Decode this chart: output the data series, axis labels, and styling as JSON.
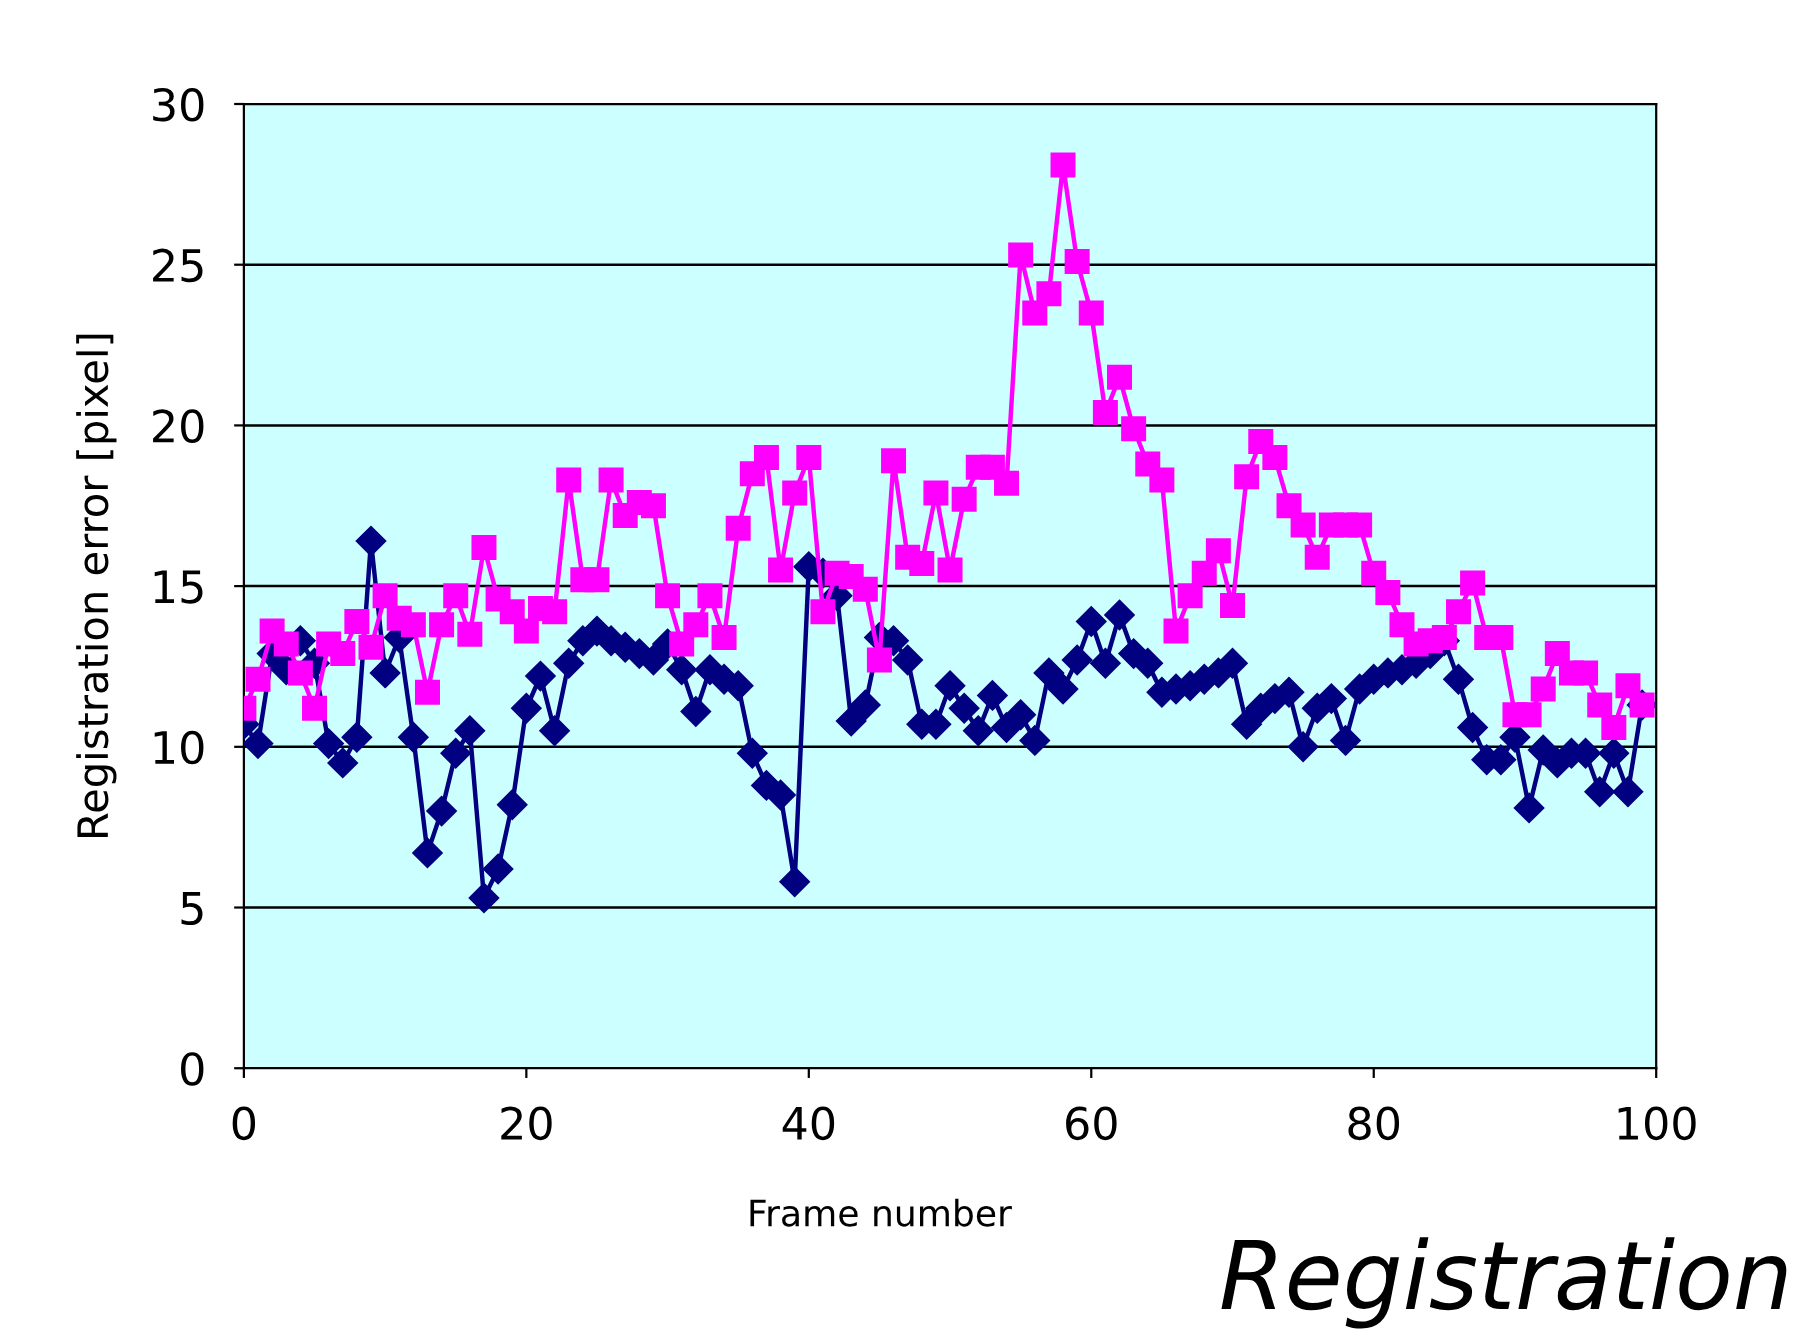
{
  "chart_data": {
    "type": "line",
    "xlabel": "Frame number",
    "ylabel": "Registration error [pixel]",
    "annotations": [
      "Registration"
    ],
    "x": [
      0,
      1,
      2,
      3,
      4,
      5,
      6,
      7,
      8,
      9,
      10,
      11,
      12,
      13,
      14,
      15,
      16,
      17,
      18,
      19,
      20,
      21,
      22,
      23,
      24,
      25,
      26,
      27,
      28,
      29,
      30,
      31,
      32,
      33,
      34,
      35,
      36,
      37,
      38,
      39,
      40,
      41,
      42,
      43,
      44,
      45,
      46,
      47,
      48,
      49,
      50,
      51,
      52,
      53,
      54,
      55,
      56,
      57,
      58,
      59,
      60,
      61,
      62,
      63,
      64,
      65,
      66,
      67,
      68,
      69,
      70,
      71,
      72,
      73,
      74,
      75,
      76,
      77,
      78,
      79,
      80,
      81,
      82,
      83,
      84,
      85,
      86,
      87,
      88,
      89,
      90,
      91,
      92,
      93,
      94,
      95,
      96,
      97,
      98,
      99
    ],
    "series": [
      {
        "color": "#ff00ff",
        "marker": "square",
        "values": [
          11.2,
          12.1,
          13.6,
          13.2,
          12.3,
          11.2,
          13.2,
          12.9,
          13.9,
          13.1,
          14.7,
          14.0,
          13.8,
          11.7,
          13.8,
          14.7,
          13.5,
          16.2,
          14.6,
          14.2,
          13.6,
          14.3,
          14.2,
          18.3,
          15.2,
          15.2,
          18.3,
          17.2,
          17.6,
          17.5,
          14.7,
          13.2,
          13.8,
          14.7,
          13.4,
          16.8,
          18.5,
          19.0,
          15.5,
          17.9,
          19.0,
          14.2,
          15.4,
          15.3,
          14.9,
          12.7,
          18.9,
          15.9,
          15.7,
          17.9,
          15.5,
          17.7,
          18.7,
          18.7,
          18.2,
          25.3,
          23.5,
          24.1,
          28.1,
          25.1,
          23.5,
          20.4,
          21.5,
          19.9,
          18.8,
          18.3,
          13.6,
          14.7,
          15.4,
          16.1,
          14.4,
          18.4,
          19.5,
          19.0,
          17.5,
          16.9,
          15.9,
          16.9,
          16.9,
          16.9,
          15.4,
          14.8,
          13.8,
          13.2,
          13.3,
          13.4,
          14.2,
          15.1,
          13.4,
          13.4,
          11.0,
          11.0,
          11.8,
          12.9,
          12.3,
          12.3,
          11.3,
          10.6,
          11.9,
          11.3
        ]
      },
      {
        "color": "#000080",
        "marker": "diamond",
        "values": [
          10.7,
          10.1,
          12.9,
          12.4,
          13.3,
          12.6,
          10.1,
          9.5,
          10.3,
          16.4,
          12.3,
          13.4,
          10.3,
          6.7,
          8.0,
          9.8,
          10.5,
          5.3,
          6.2,
          8.2,
          11.2,
          12.2,
          10.5,
          12.6,
          13.3,
          13.6,
          13.3,
          13.1,
          12.9,
          12.7,
          13.2,
          12.4,
          11.1,
          12.4,
          12.1,
          11.9,
          9.8,
          8.8,
          8.5,
          5.8,
          15.6,
          15.4,
          14.7,
          10.8,
          11.3,
          13.4,
          13.3,
          12.7,
          10.7,
          10.7,
          11.9,
          11.2,
          10.5,
          11.6,
          10.6,
          11.0,
          10.2,
          12.3,
          11.8,
          12.7,
          13.9,
          12.6,
          14.1,
          12.9,
          12.6,
          11.7,
          11.8,
          11.9,
          12.1,
          12.3,
          12.6,
          10.7,
          11.2,
          11.5,
          11.7,
          10.0,
          11.2,
          11.5,
          10.2,
          11.8,
          12.1,
          12.3,
          12.4,
          12.6,
          12.9,
          13.3,
          12.1,
          10.6,
          9.6,
          9.6,
          10.3,
          8.1,
          9.9,
          9.5,
          9.8,
          9.8,
          8.6,
          9.8,
          8.6,
          11.3
        ]
      }
    ],
    "xlim": [
      0,
      100
    ],
    "xticks": [
      0,
      20,
      40,
      60,
      80,
      100
    ],
    "ylim": [
      0,
      30
    ],
    "yticks": [
      0,
      5,
      10,
      15,
      20,
      25,
      30
    ],
    "grid": "y",
    "line_style": "solid"
  }
}
